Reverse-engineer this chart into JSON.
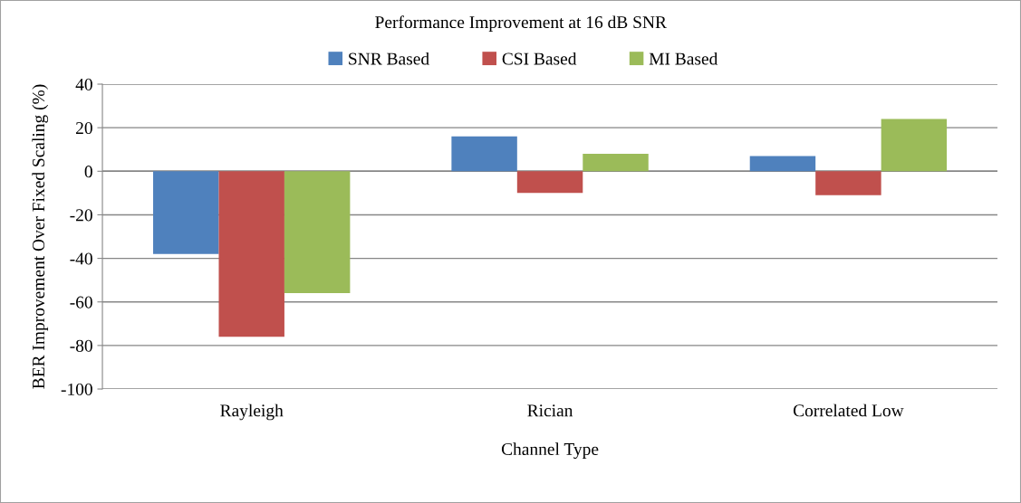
{
  "chart_data": {
    "type": "bar",
    "title": "Performance Improvement at 16 dB SNR",
    "xlabel": "Channel Type",
    "ylabel": "BER Improvement Over Fixed Scaling (%)",
    "categories": [
      "Rayleigh",
      "Rician",
      "Correlated Low"
    ],
    "series": [
      {
        "name": "SNR Based",
        "color": "#4f81bd",
        "values": [
          -38,
          16,
          7
        ]
      },
      {
        "name": "CSI Based",
        "color": "#c0504d",
        "values": [
          -76,
          -10,
          -11
        ]
      },
      {
        "name": "MI Based",
        "color": "#9bbb59",
        "values": [
          -56,
          8,
          24
        ]
      }
    ],
    "ylim": [
      -100,
      40
    ],
    "yticks": [
      -100,
      -80,
      -60,
      -40,
      -20,
      0,
      20,
      40
    ],
    "grid": "y",
    "legend": "top"
  }
}
